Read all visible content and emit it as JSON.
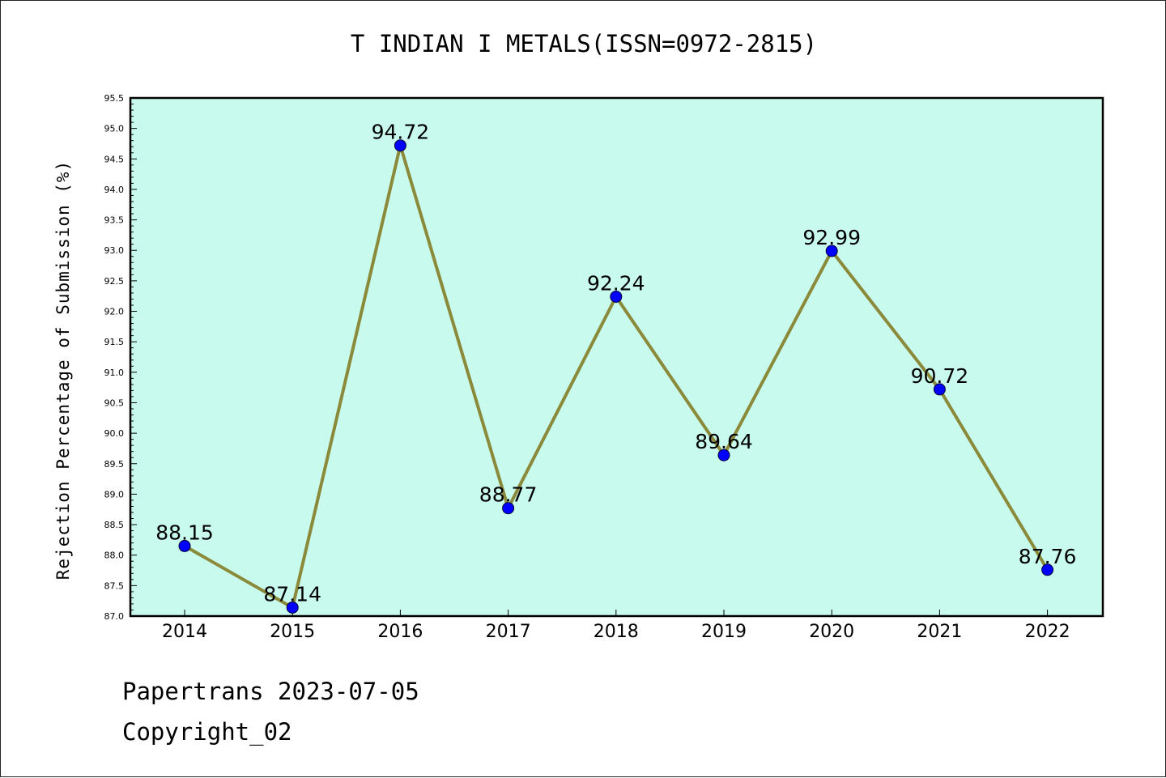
{
  "chart_data": {
    "type": "line",
    "title": "T INDIAN I METALS(ISSN=0972-2815)",
    "xlabel": "",
    "ylabel": "Rejection Percentage of Submission (%)",
    "categories": [
      "2014",
      "2015",
      "2016",
      "2017",
      "2018",
      "2019",
      "2020",
      "2021",
      "2022"
    ],
    "series": [
      {
        "values": [
          88.15,
          87.14,
          94.72,
          88.77,
          92.24,
          89.64,
          92.99,
          90.72,
          87.76
        ],
        "data_labels": [
          "88.15",
          "87.14",
          "94.72",
          "88.77",
          "92.24",
          "89.64",
          "92.99",
          "90.72",
          "87.76"
        ]
      }
    ],
    "ylim": [
      87.0,
      95.5
    ],
    "yticks": [
      "87.0",
      "87.5",
      "88.0",
      "88.5",
      "89.0",
      "89.5",
      "90.0",
      "90.5",
      "91.0",
      "91.5",
      "92.0",
      "92.5",
      "93.0",
      "93.5",
      "94.0",
      "94.5",
      "95.0",
      "95.5"
    ],
    "grid": false,
    "colors": {
      "plot_background": "#c8fbee",
      "line": "#8a8a3a",
      "marker": "#0000ff"
    }
  },
  "footer": {
    "line1": "Papertrans 2023-07-05",
    "line2": "Copyright_02"
  }
}
